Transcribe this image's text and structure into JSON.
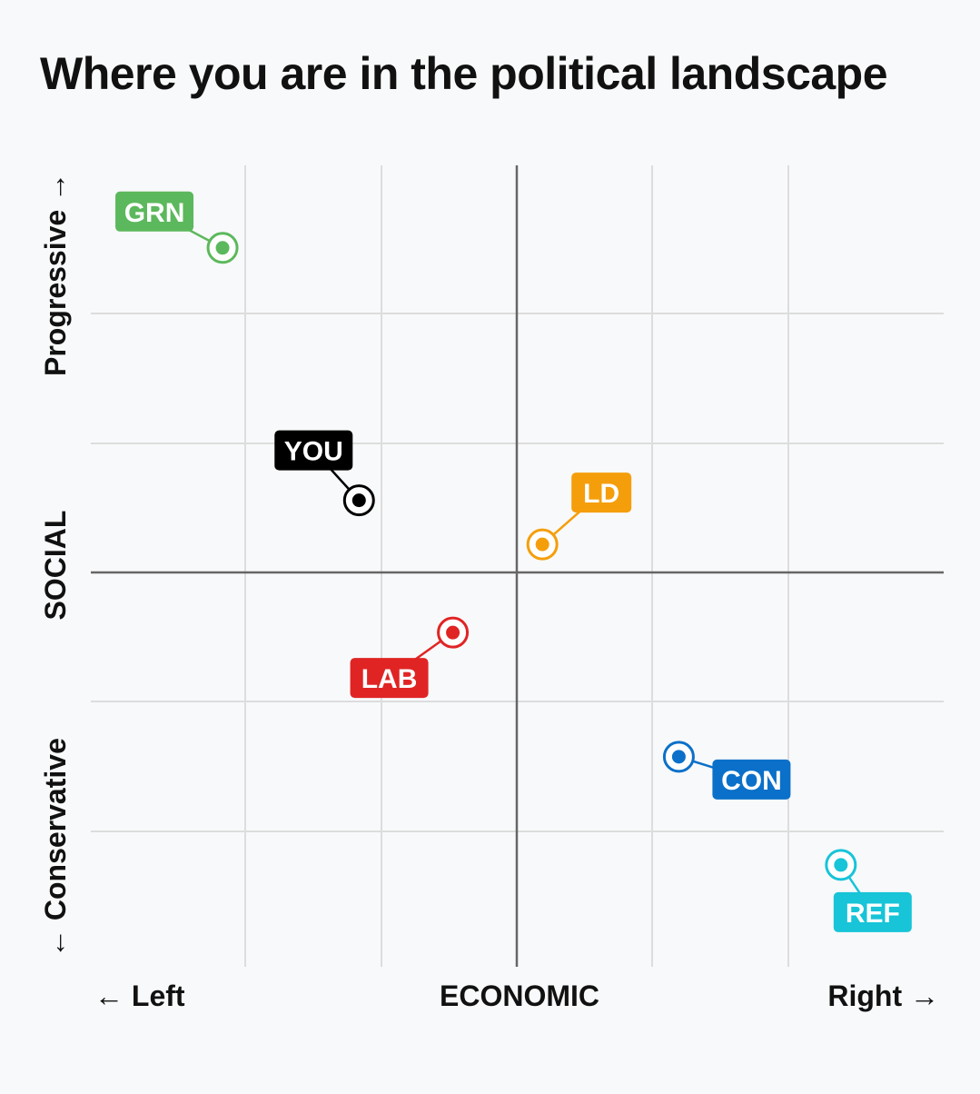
{
  "title": "Where you are in the political landscape",
  "chart_data": {
    "type": "scatter",
    "title": "Where you are in the political landscape",
    "xlabel": "ECONOMIC",
    "ylabel": "SOCIAL",
    "x_left_label": "← Left",
    "x_right_label": "Right →",
    "y_top_label": "Progressive →",
    "y_bottom_label": "← Conservative",
    "xlim": [
      -10,
      10
    ],
    "ylim": [
      -10,
      10
    ],
    "grid": true,
    "points": [
      {
        "label": "GRN",
        "x": -6.9,
        "y": 8.1,
        "color": "#5cb85c"
      },
      {
        "label": "YOU",
        "x": -3.7,
        "y": 1.8,
        "color": "#000000"
      },
      {
        "label": "LD",
        "x": 0.6,
        "y": 0.7,
        "color": "#f59e0b"
      },
      {
        "label": "LAB",
        "x": -1.5,
        "y": -1.5,
        "color": "#e02424"
      },
      {
        "label": "CON",
        "x": 3.8,
        "y": -4.6,
        "color": "#0b70c9"
      },
      {
        "label": "REF",
        "x": 7.6,
        "y": -7.3,
        "color": "#17c4d8"
      }
    ]
  }
}
